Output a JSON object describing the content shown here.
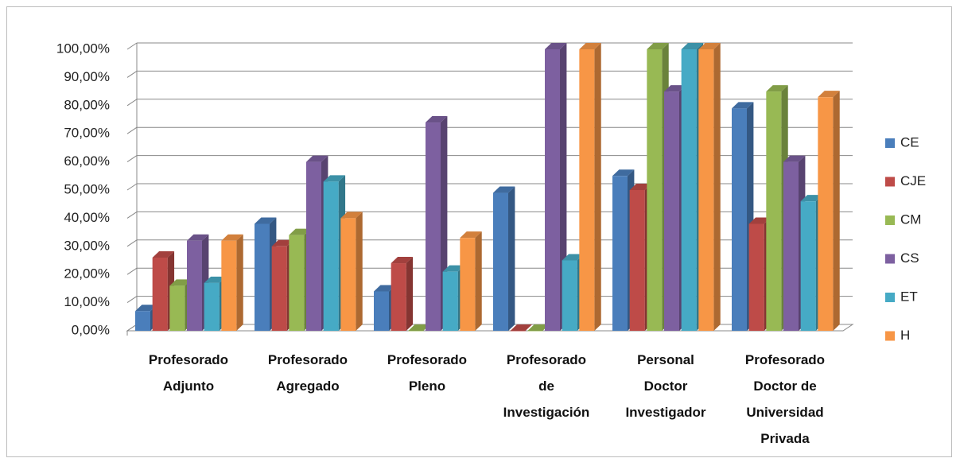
{
  "chart_data": {
    "type": "bar3d",
    "categories": [
      "Profesorado\nAdjunto",
      "Profesorado\nAgregado",
      "Profesorado\nPleno",
      "Profesorado\nde\nInvestigación",
      "Personal\nDoctor\nInvestigador",
      "Profesorado\nDoctor de\nUniversidad\nPrivada"
    ],
    "series": [
      {
        "name": "CE",
        "color": "#4a7ebb",
        "values": [
          7,
          38,
          14,
          49,
          55,
          79
        ]
      },
      {
        "name": "CJE",
        "color": "#be4b48",
        "values": [
          26,
          30,
          24,
          0,
          50,
          38
        ]
      },
      {
        "name": "CM",
        "color": "#98b954",
        "values": [
          16,
          34,
          0,
          0,
          100,
          85
        ]
      },
      {
        "name": "CS",
        "color": "#7d60a0",
        "values": [
          32,
          60,
          74,
          100,
          85,
          60
        ]
      },
      {
        "name": "ET",
        "color": "#46aac5",
        "values": [
          17,
          53,
          21,
          25,
          100,
          46
        ]
      },
      {
        "name": "H",
        "color": "#f79646",
        "values": [
          32,
          40,
          33,
          100,
          100,
          83
        ]
      }
    ],
    "ylim": [
      0,
      100
    ],
    "yticks": [
      {
        "value": 0,
        "label": "0,00%"
      },
      {
        "value": 10,
        "label": "10,00%"
      },
      {
        "value": 20,
        "label": "20,00%"
      },
      {
        "value": 30,
        "label": "30,00%"
      },
      {
        "value": 40,
        "label": "40,00%"
      },
      {
        "value": 50,
        "label": "50,00%"
      },
      {
        "value": 60,
        "label": "60,00%"
      },
      {
        "value": 70,
        "label": "70,00%"
      },
      {
        "value": 80,
        "label": "80,00%"
      },
      {
        "value": 90,
        "label": "90,00%"
      },
      {
        "value": 100,
        "label": "100,00%"
      }
    ],
    "grid": true,
    "legend": "right"
  }
}
